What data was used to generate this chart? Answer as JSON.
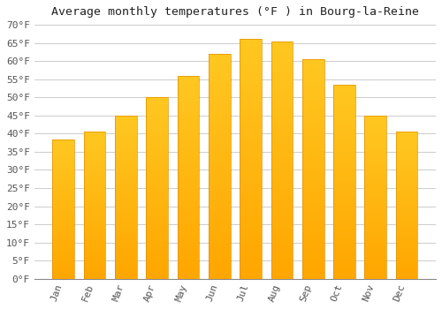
{
  "title": "Average monthly temperatures (°F ) in Bourg-la-Reine",
  "months": [
    "Jan",
    "Feb",
    "Mar",
    "Apr",
    "May",
    "Jun",
    "Jul",
    "Aug",
    "Sep",
    "Oct",
    "Nov",
    "Dec"
  ],
  "values": [
    38.5,
    40.5,
    45.0,
    50.0,
    56.0,
    62.0,
    66.0,
    65.5,
    60.5,
    53.5,
    45.0,
    40.5
  ],
  "bar_color_top": "#FFC020",
  "bar_color_bottom": "#FFA500",
  "bar_edge_color": "#E09000",
  "background_color": "#FFFFFF",
  "grid_color": "#CCCCCC",
  "ylim": [
    0,
    70
  ],
  "ytick_step": 5,
  "title_fontsize": 9.5,
  "tick_fontsize": 8,
  "font_family": "monospace"
}
